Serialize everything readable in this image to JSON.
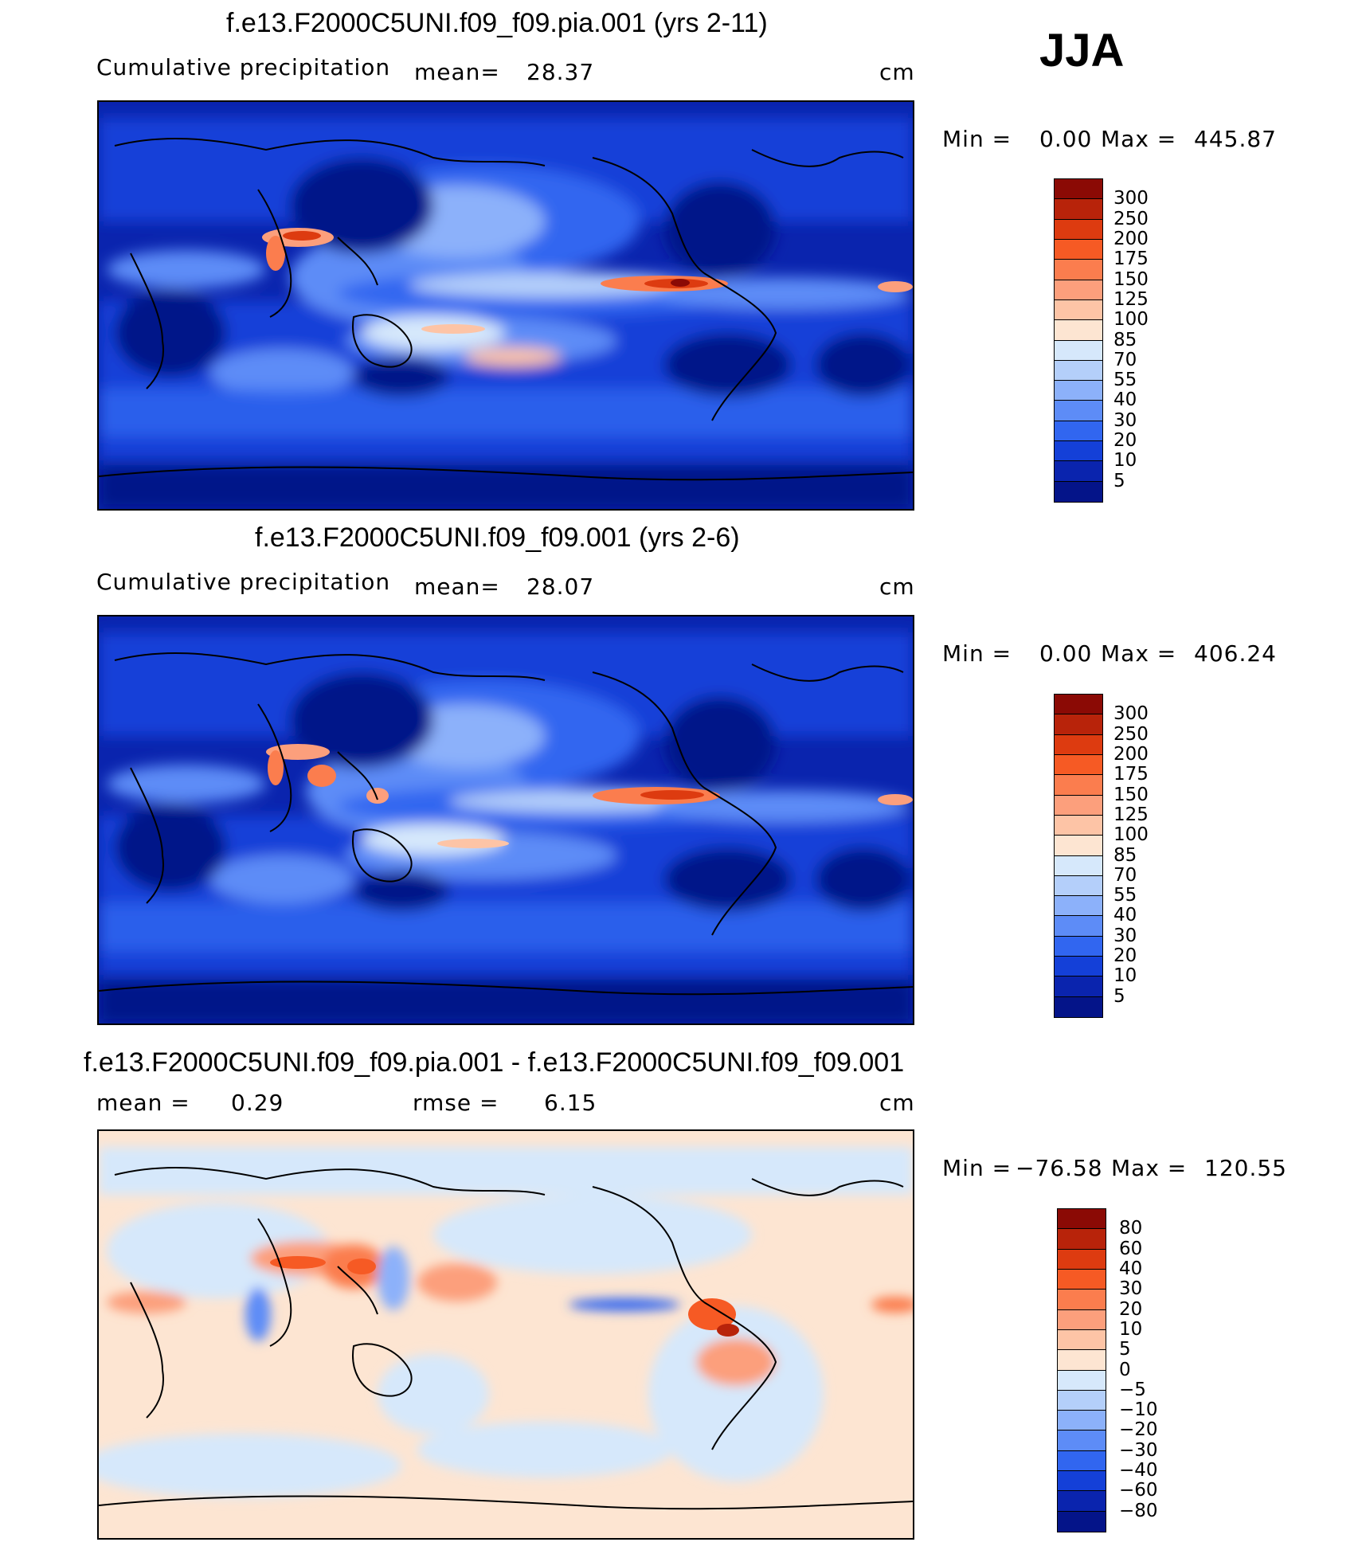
{
  "season": "JJA",
  "panels": [
    {
      "title": "f.e13.F2000C5UNI.f09_f09.pia.001 (yrs 2-11)",
      "left_label": "Cumulative precipitation",
      "mean_text": "mean=",
      "mean_value": "28.37",
      "units": "cm",
      "min_text": "Min  =",
      "min_value": "0.00",
      "max_text": "Max  =",
      "max_value": "445.87",
      "colorbar_labels": [
        "300",
        "250",
        "200",
        "175",
        "150",
        "125",
        "100",
        "85",
        "70",
        "55",
        "40",
        "30",
        "20",
        "10",
        "5"
      ],
      "colorbar_colors": [
        "#8b0a05",
        "#b8230a",
        "#dd3b10",
        "#f65a24",
        "#fb7d4e",
        "#fc9f7c",
        "#fdc4a6",
        "#fde5d2",
        "#d6e8fb",
        "#b4cffa",
        "#8cb1fa",
        "#5d8cf7",
        "#3166f0",
        "#1440d8",
        "#0a24ae",
        "#041489"
      ]
    },
    {
      "title": "f.e13.F2000C5UNI.f09_f09.001 (yrs 2-6)",
      "left_label": "Cumulative precipitation",
      "mean_text": "mean=",
      "mean_value": "28.07",
      "units": "cm",
      "min_text": "Min  =",
      "min_value": "0.00",
      "max_text": "Max  =",
      "max_value": "406.24",
      "colorbar_labels": [
        "300",
        "250",
        "200",
        "175",
        "150",
        "125",
        "100",
        "85",
        "70",
        "55",
        "40",
        "30",
        "20",
        "10",
        "5"
      ],
      "colorbar_colors": [
        "#8b0a05",
        "#b8230a",
        "#dd3b10",
        "#f65a24",
        "#fb7d4e",
        "#fc9f7c",
        "#fdc4a6",
        "#fde5d2",
        "#d6e8fb",
        "#b4cffa",
        "#8cb1fa",
        "#5d8cf7",
        "#3166f0",
        "#1440d8",
        "#0a24ae",
        "#041489"
      ]
    },
    {
      "title": "f.e13.F2000C5UNI.f09_f09.pia.001 - f.e13.F2000C5UNI.f09_f09.001",
      "left_label": "mean  =",
      "left_value": "0.29",
      "mean_text": "rmse  =",
      "mean_value": "6.15",
      "units": "cm",
      "min_text": "Min  =",
      "min_value": "−76.58",
      "max_text": "Max  =",
      "max_value": "120.55",
      "colorbar_labels": [
        "80",
        "60",
        "40",
        "30",
        "20",
        "10",
        "5",
        "0",
        "−5",
        "−10",
        "−20",
        "−30",
        "−40",
        "−60",
        "−80"
      ],
      "colorbar_colors": [
        "#8b0a05",
        "#b8230a",
        "#dd3b10",
        "#f65a24",
        "#fb7d4e",
        "#fc9f7c",
        "#fdc4a6",
        "#fde5d2",
        "#d6e8fb",
        "#b4cffa",
        "#8cb1fa",
        "#5d8cf7",
        "#3166f0",
        "#1440d8",
        "#0a24ae",
        "#041489"
      ]
    }
  ]
}
